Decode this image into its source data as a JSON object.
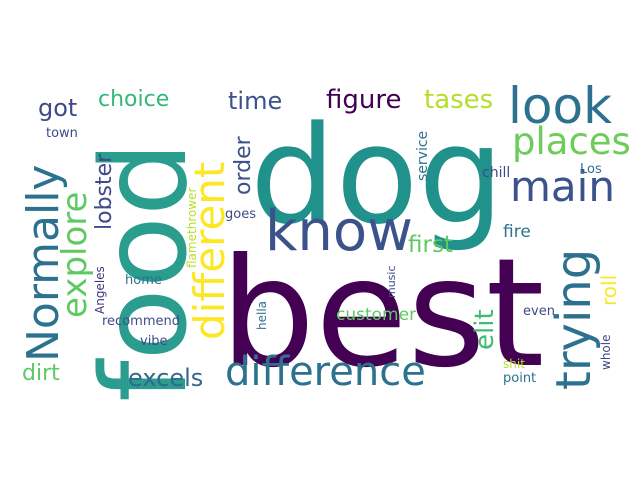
{
  "words": [
    {
      "text": "best",
      "color": "#440154"
    },
    {
      "text": "dog",
      "color": "#21918c"
    },
    {
      "text": "food",
      "color": "#2a9d8f"
    },
    {
      "text": "know",
      "color": "#3b528b"
    },
    {
      "text": "look",
      "color": "#2c728e"
    },
    {
      "text": "main",
      "color": "#3b528b"
    },
    {
      "text": "places",
      "color": "#6ccd5a"
    },
    {
      "text": "difference",
      "color": "#2c728e"
    },
    {
      "text": "trying",
      "color": "#2c728e"
    },
    {
      "text": "different",
      "color": "#fde725"
    },
    {
      "text": "Normally",
      "color": "#2c728e"
    },
    {
      "text": "explore",
      "color": "#5ec962"
    },
    {
      "text": "figure",
      "color": "#440154"
    },
    {
      "text": "tases",
      "color": "#b5de2b"
    },
    {
      "text": "time",
      "color": "#3b528b"
    },
    {
      "text": "choice",
      "color": "#35b779"
    },
    {
      "text": "got",
      "color": "#3e4a89"
    },
    {
      "text": "lobster",
      "color": "#3e4a89"
    },
    {
      "text": "order",
      "color": "#3b528b"
    },
    {
      "text": "first",
      "color": "#5ec962"
    },
    {
      "text": "elit",
      "color": "#3dbc74"
    },
    {
      "text": "roll",
      "color": "#fde725"
    },
    {
      "text": "excels",
      "color": "#31688e"
    },
    {
      "text": "dirt",
      "color": "#5ec962"
    },
    {
      "text": "customer",
      "color": "#5ec962"
    },
    {
      "text": "fire",
      "color": "#2c728e"
    },
    {
      "text": "service",
      "color": "#2c728e"
    },
    {
      "text": "chill",
      "color": "#3e4a89"
    },
    {
      "text": "Los",
      "color": "#2c728e"
    },
    {
      "text": "town",
      "color": "#3e4a89"
    },
    {
      "text": "flamethrower",
      "color": "#b5de2b"
    },
    {
      "text": "goes",
      "color": "#3e4a89"
    },
    {
      "text": "Angeles",
      "color": "#46327e"
    },
    {
      "text": "home",
      "color": "#2c728e"
    },
    {
      "text": "recommend",
      "color": "#3e4a89"
    },
    {
      "text": "vibe",
      "color": "#3e4a89"
    },
    {
      "text": "music",
      "color": "#3e4a89"
    },
    {
      "text": "hella",
      "color": "#2c728e"
    },
    {
      "text": "even",
      "color": "#3e4a89"
    },
    {
      "text": "whole",
      "color": "#3e4a89"
    },
    {
      "text": "shit",
      "color": "#b5de2b"
    },
    {
      "text": "point",
      "color": "#2c728e"
    }
  ]
}
